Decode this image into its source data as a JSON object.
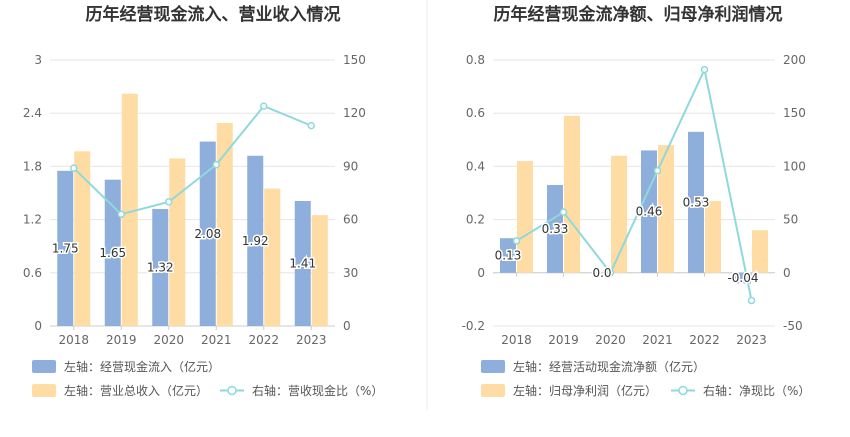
{
  "colors": {
    "left_bar": "#8eaedb",
    "right_bar": "#fedca3",
    "line": "#8fd9dc",
    "grid": "#e6e6e6",
    "axis": "#cccccc",
    "divider": "#eeeeee"
  },
  "chart_data": [
    {
      "type": "bar",
      "title": "历年经营现金流入、营业收入情况",
      "categories": [
        "2018",
        "2019",
        "2020",
        "2021",
        "2022",
        "2023"
      ],
      "left_axis": {
        "min": 0,
        "max": 3,
        "ticks": [
          "0",
          "0.6",
          "1.2",
          "1.8",
          "2.4",
          "3"
        ]
      },
      "right_axis": {
        "min": 0,
        "max": 150,
        "ticks": [
          "0",
          "30",
          "60",
          "90",
          "120",
          "150"
        ]
      },
      "series": [
        {
          "name": "左轴：经营现金流入（亿元）",
          "type": "bar",
          "axis": "left",
          "values": [
            1.75,
            1.65,
            1.32,
            2.08,
            1.92,
            1.41
          ],
          "labels": [
            "1.75",
            "1.65",
            "1.32",
            "2.08",
            "1.92",
            "1.41"
          ]
        },
        {
          "name": "左轴：营业总收入（亿元）",
          "type": "bar",
          "axis": "left",
          "values": [
            1.97,
            2.62,
            1.89,
            2.29,
            1.55,
            1.25
          ]
        },
        {
          "name": "右轴：营收现金比（%）",
          "type": "line",
          "axis": "right",
          "values": [
            89,
            63,
            70,
            91,
            124,
            113
          ]
        }
      ]
    },
    {
      "type": "bar",
      "title": "历年经营现金流净额、归母净利润情况",
      "categories": [
        "2018",
        "2019",
        "2020",
        "2021",
        "2022",
        "2023"
      ],
      "left_axis": {
        "min": -0.2,
        "max": 0.8,
        "ticks": [
          "-0.2",
          "0",
          "0.2",
          "0.4",
          "0.6",
          "0.8"
        ]
      },
      "right_axis": {
        "min": -50,
        "max": 200,
        "ticks": [
          "-50",
          "0",
          "50",
          "100",
          "150",
          "200"
        ]
      },
      "series": [
        {
          "name": "左轴：经营活动现金流净额（亿元）",
          "type": "bar",
          "axis": "left",
          "values": [
            0.13,
            0.33,
            0.0,
            0.46,
            0.53,
            -0.04
          ],
          "labels": [
            "0.13",
            "0.33",
            "0.0",
            "0.46",
            "0.53",
            "-0.04"
          ]
        },
        {
          "name": "左轴：归母净利润（亿元）",
          "type": "bar",
          "axis": "left",
          "values": [
            0.42,
            0.59,
            0.44,
            0.48,
            0.27,
            0.16
          ]
        },
        {
          "name": "右轴：净现比（%）",
          "type": "line",
          "axis": "right",
          "values": [
            30,
            57,
            0,
            96,
            191,
            -26
          ]
        }
      ]
    }
  ]
}
